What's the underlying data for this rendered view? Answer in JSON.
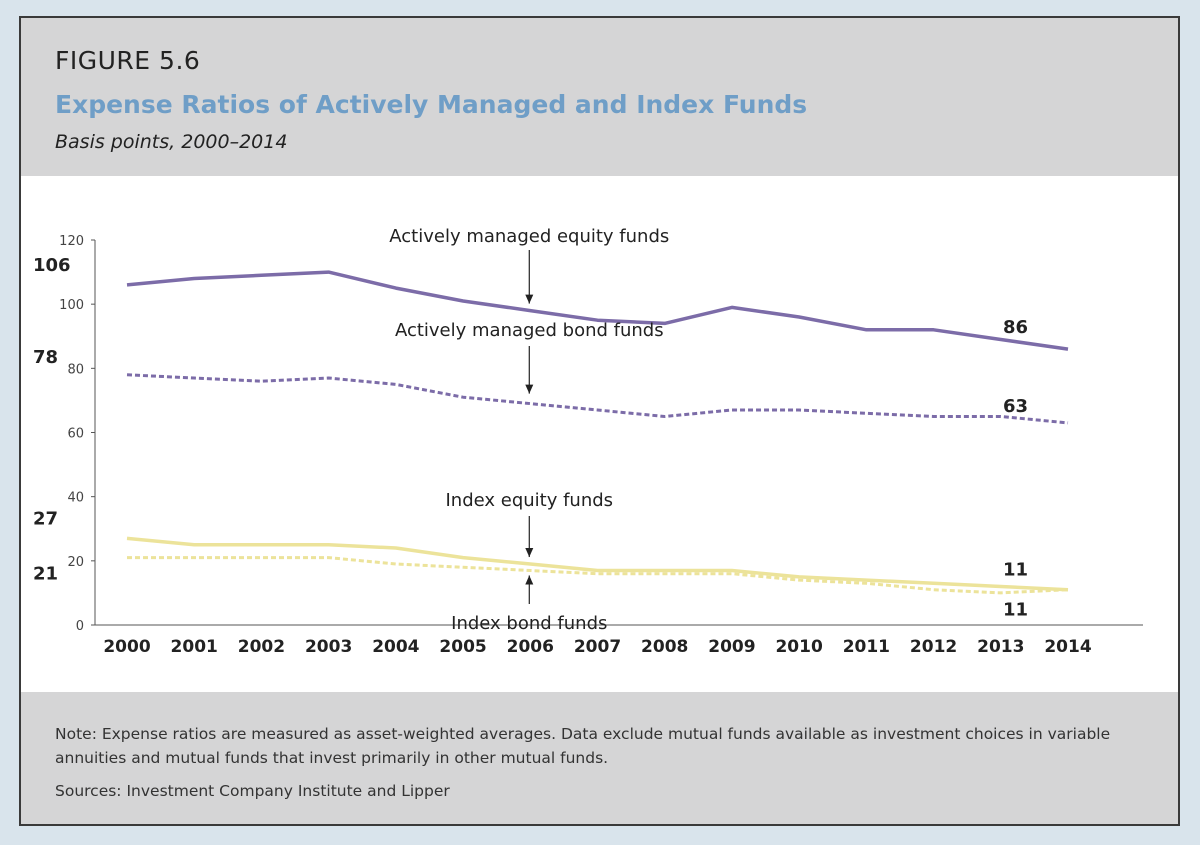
{
  "figure": {
    "label": "FIGURE 5.6",
    "title": "Expense Ratios of Actively Managed and Index Funds",
    "subtitle": "Basis points, 2000–2014"
  },
  "footer": {
    "note": "Note: Expense ratios are measured as asset-weighted averages. Data exclude mutual funds available as investment choices in variable annuities and mutual funds that invest primarily in other mutual funds.",
    "sources": "Sources: Investment Company Institute and Lipper"
  },
  "colors": {
    "active": "#7c6ca8",
    "index": "#ece39a",
    "title": "#6f9ec7"
  },
  "chart_data": {
    "type": "line",
    "x": [
      2000,
      2001,
      2002,
      2003,
      2004,
      2005,
      2006,
      2007,
      2008,
      2009,
      2010,
      2011,
      2012,
      2013,
      2014
    ],
    "ylim": [
      0,
      120
    ],
    "yticks": [
      0,
      20,
      40,
      60,
      80,
      100,
      120
    ],
    "grid": false,
    "series": [
      {
        "name": "Actively managed equity funds",
        "style": "solid",
        "color": "#7c6ca8",
        "values": [
          106,
          108,
          109,
          110,
          105,
          101,
          98,
          95,
          94,
          99,
          96,
          92,
          92,
          89,
          86
        ]
      },
      {
        "name": "Actively managed bond funds",
        "style": "dashed",
        "color": "#7c6ca8",
        "values": [
          78,
          77,
          76,
          77,
          75,
          71,
          69,
          67,
          65,
          67,
          67,
          66,
          65,
          65,
          63
        ]
      },
      {
        "name": "Index equity funds",
        "style": "solid",
        "color": "#ece39a",
        "values": [
          27,
          25,
          25,
          25,
          24,
          21,
          19,
          17,
          17,
          17,
          15,
          14,
          13,
          12,
          11
        ]
      },
      {
        "name": "Index bond funds",
        "style": "dashed",
        "color": "#ece39a",
        "values": [
          21,
          21,
          21,
          21,
          19,
          18,
          17,
          16,
          16,
          16,
          14,
          13,
          11,
          10,
          11
        ]
      }
    ],
    "value_labels": [
      {
        "text": "106",
        "series": 0,
        "end": "start"
      },
      {
        "text": "86",
        "series": 0,
        "end": "end"
      },
      {
        "text": "78",
        "series": 1,
        "end": "start"
      },
      {
        "text": "63",
        "series": 1,
        "end": "end"
      },
      {
        "text": "27",
        "series": 2,
        "end": "start"
      },
      {
        "text": "11",
        "series": 2,
        "end": "end"
      },
      {
        "text": "21",
        "series": 3,
        "end": "start"
      },
      {
        "text": "11",
        "series": 3,
        "end": "end"
      }
    ],
    "annotations": [
      {
        "text": "Actively managed equity funds",
        "series": 0
      },
      {
        "text": "Actively managed bond funds",
        "series": 1
      },
      {
        "text": "Index equity funds",
        "series": 2
      },
      {
        "text": "Index bond funds",
        "series": 3
      }
    ]
  }
}
